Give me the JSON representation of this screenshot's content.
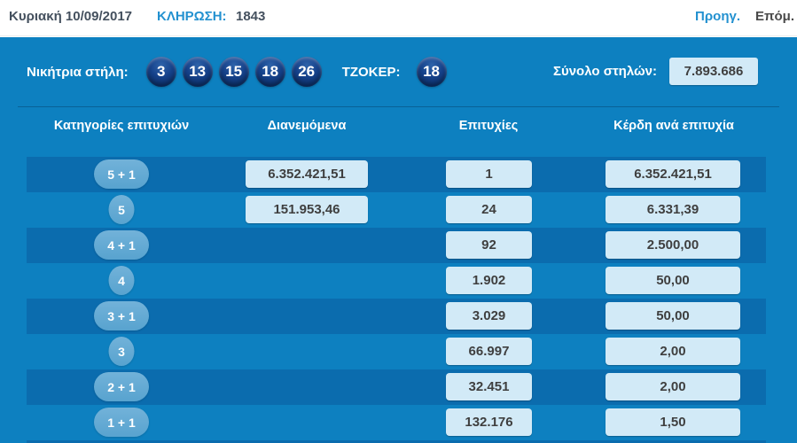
{
  "topbar": {
    "date": "Κυριακή 10/09/2017",
    "draw_label": "ΚΛΗΡΩΣΗ:",
    "draw_number": "1843",
    "prev_label": "Προηγ.",
    "next_label": "Επόμ."
  },
  "winning": {
    "label": "Νικήτρια στήλη:",
    "numbers": [
      "3",
      "13",
      "15",
      "18",
      "26"
    ],
    "joker_label": "ΤΖΟΚΕΡ:",
    "joker_number": "18",
    "total_columns_label": "Σύνολο στηλών:",
    "total_columns_value": "7.893.686"
  },
  "table": {
    "headers": [
      "Κατηγορίες επιτυχιών",
      "Διανεμόμενα",
      "Επιτυχίες",
      "Κέρδη ανά επιτυχία"
    ],
    "rows": [
      {
        "category": "5 + 1",
        "distributed": "6.352.421,51",
        "winners": "1",
        "prize": "6.352.421,51"
      },
      {
        "category": "5",
        "distributed": "151.953,46",
        "winners": "24",
        "prize": "6.331,39"
      },
      {
        "category": "4 + 1",
        "distributed": "",
        "winners": "92",
        "prize": "2.500,00"
      },
      {
        "category": "4",
        "distributed": "",
        "winners": "1.902",
        "prize": "50,00"
      },
      {
        "category": "3 + 1",
        "distributed": "",
        "winners": "3.029",
        "prize": "50,00"
      },
      {
        "category": "3",
        "distributed": "",
        "winners": "66.997",
        "prize": "2,00"
      },
      {
        "category": "2 + 1",
        "distributed": "",
        "winners": "32.451",
        "prize": "2,00"
      },
      {
        "category": "1 + 1",
        "distributed": "",
        "winners": "132.176",
        "prize": "1,50"
      }
    ]
  },
  "colors": {
    "panel_blue": "#0d80c0",
    "stripe_dark": "#0b6cae",
    "ball_navy": "#0d3b7e",
    "badge_blue": "#5ca7d3",
    "value_box_light": "#d2eaf7",
    "link_blue": "#2391d0",
    "dark_text": "#44505e"
  }
}
